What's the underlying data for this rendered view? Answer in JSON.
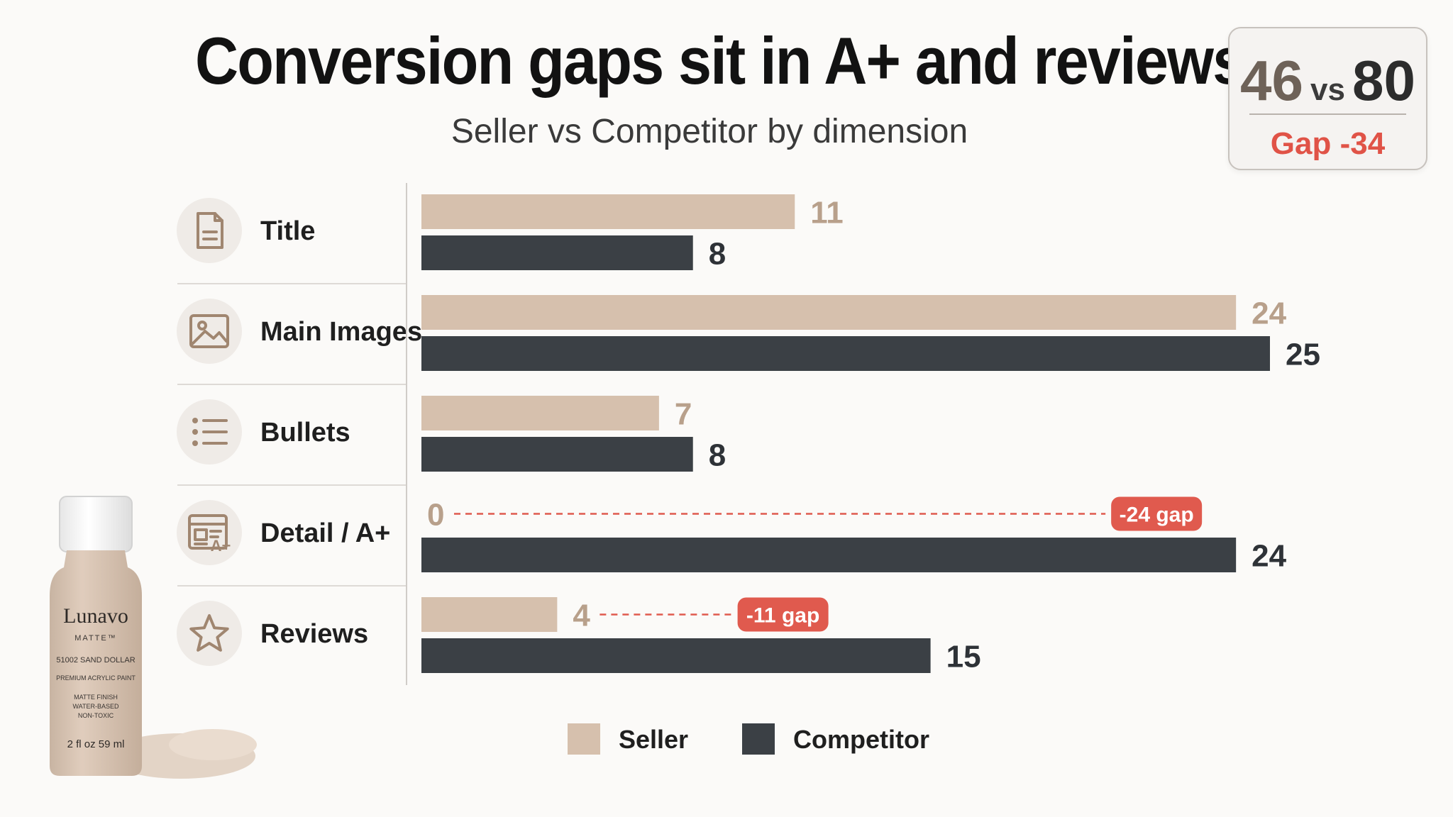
{
  "title": "Conversion gaps sit in A+ and reviews.",
  "subtitle": "Seller vs Competitor by dimension",
  "score_card": {
    "seller_score": "46",
    "vs_label": "vs",
    "competitor_score": "80",
    "gap_label": "Gap -34"
  },
  "colors": {
    "seller": "#d6c0ad",
    "competitor": "#3b4045",
    "gap": "#e05a4e",
    "seller_label": "#b8a08b",
    "competitor_label": "#2e3237"
  },
  "product": {
    "brand": "Lunavo",
    "line": "MATTE™",
    "shade": "51002 SAND DOLLAR",
    "type": "PREMIUM ACRYLIC PAINT",
    "features": [
      "MATTE FINISH",
      "WATER-BASED",
      "NON-TOXIC"
    ],
    "volume": "2 fl oz 59 ml"
  },
  "chart_data": {
    "type": "bar",
    "orientation": "horizontal",
    "title": "Conversion gaps sit in A+ and reviews.",
    "subtitle": "Seller vs Competitor by dimension",
    "categories": [
      "Title",
      "Main Images",
      "Bullets",
      "Detail / A+",
      "Reviews"
    ],
    "category_icons": [
      "document-icon",
      "image-icon",
      "list-icon",
      "layout-aplus-icon",
      "star-icon"
    ],
    "series": [
      {
        "name": "Seller",
        "values": [
          11,
          24,
          7,
          0,
          4
        ]
      },
      {
        "name": "Competitor",
        "values": [
          8,
          25,
          8,
          24,
          15
        ]
      }
    ],
    "annotations": [
      {
        "category": "Detail / A+",
        "text": "-24 gap"
      },
      {
        "category": "Reviews",
        "text": "-11 gap"
      }
    ],
    "xlim": [
      0,
      25
    ],
    "legend": {
      "position": "bottom-center",
      "items": [
        "Seller",
        "Competitor"
      ]
    },
    "grid": false
  }
}
